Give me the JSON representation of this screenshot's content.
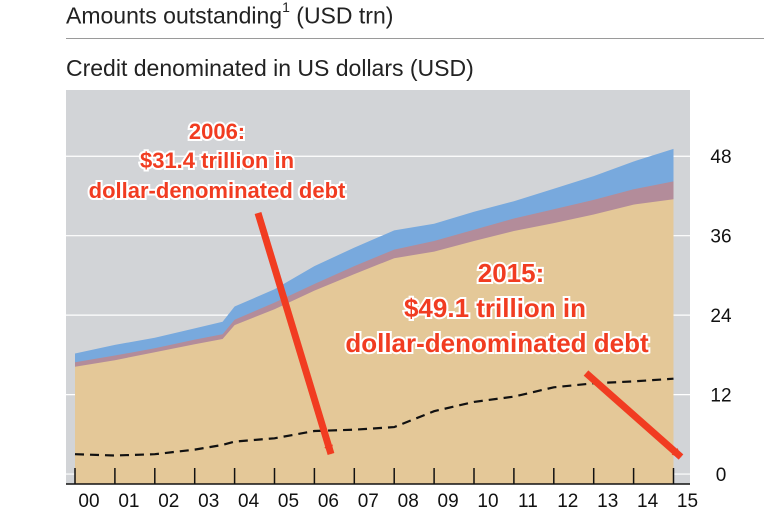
{
  "header": {
    "title": "Amounts outstanding",
    "footnote": "1",
    "unit": "(USD trn)"
  },
  "chart_data": {
    "type": "area",
    "title": "Credit denominated in US dollars (USD)",
    "x": [
      0,
      1,
      2,
      3,
      3.7,
      4,
      5,
      6,
      7,
      8,
      9,
      10,
      11,
      12,
      13,
      14,
      15
    ],
    "x_tick_labels": [
      "00",
      "01",
      "02",
      "03",
      "04",
      "05",
      "06",
      "07",
      "08",
      "09",
      "10",
      "11",
      "12",
      "13",
      "14",
      "15"
    ],
    "y_ticks": [
      0,
      12,
      24,
      36,
      48
    ],
    "ylim": [
      -1.5,
      58
    ],
    "y_axis_side": "right",
    "grid": "horizontal",
    "series": [
      {
        "values": [
          16.2,
          17.2,
          18.4,
          19.6,
          20.4,
          22.5,
          24.9,
          27.7,
          30.2,
          32.6,
          33.6,
          35.2,
          36.7,
          37.9,
          39.2,
          40.7,
          41.5
        ],
        "color": "#e4c898"
      },
      {
        "values": [
          16.9,
          17.9,
          19.0,
          20.3,
          21.1,
          23.3,
          25.9,
          28.7,
          31.4,
          33.9,
          35.2,
          36.9,
          38.6,
          40.0,
          41.4,
          43.0,
          44.2
        ],
        "color": "#b38c9a"
      },
      {
        "values": [
          18.2,
          19.5,
          20.6,
          22.0,
          23.0,
          25.3,
          27.9,
          31.4,
          34.2,
          36.8,
          37.8,
          39.6,
          41.2,
          43.1,
          45.0,
          47.2,
          49.1
        ],
        "color": "#78a9dd"
      },
      {
        "style": "dashed",
        "values": [
          3.0,
          2.8,
          3.0,
          3.7,
          4.4,
          4.9,
          5.4,
          6.5,
          6.7,
          7.1,
          9.5,
          10.9,
          11.7,
          13.1,
          13.7,
          14.0,
          14.4
        ],
        "color": "#111111"
      }
    ],
    "annotations": [
      {
        "lines": [
          "2006:",
          "$31.4 trillion in",
          "dollar-denominated debt"
        ],
        "color": "#f13c21"
      },
      {
        "lines": [
          "2015:",
          "$49.1 trillion in",
          "dollar-denominated debt"
        ],
        "color": "#f13c21"
      }
    ]
  }
}
